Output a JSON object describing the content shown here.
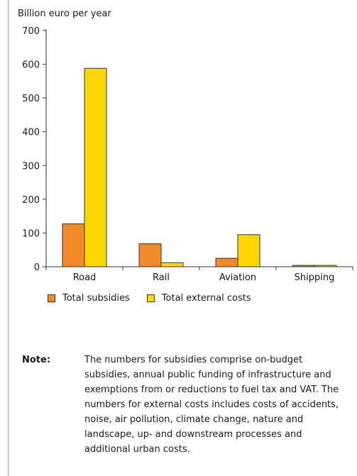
{
  "chart_data": {
    "type": "bar",
    "ylabel": "Billion euro per year",
    "xlabel": "",
    "categories": [
      "Road",
      "Rail",
      "Aviation",
      "Shipping"
    ],
    "series": [
      {
        "name": "Total subsidies",
        "color": "#f28a2b",
        "values": [
          127,
          68,
          25,
          4
        ]
      },
      {
        "name": "Total external costs",
        "color": "#ffd600",
        "values": [
          588,
          12,
          95,
          4
        ]
      }
    ],
    "ylim": [
      0,
      700
    ],
    "yticks": [
      0,
      100,
      200,
      300,
      400,
      500,
      600,
      700
    ],
    "grid": false,
    "legend_position": "bottom"
  },
  "note": {
    "label": "Note:",
    "text": "The numbers for subsidies comprise on-budget subsidies, annual public funding of infrastructure and exemptions from or reductions to fuel tax and VAT. The numbers for external costs includes costs of accidents, noise, air pollution, climate change, nature and landscape, up- and downstream processes and additional urban costs."
  }
}
